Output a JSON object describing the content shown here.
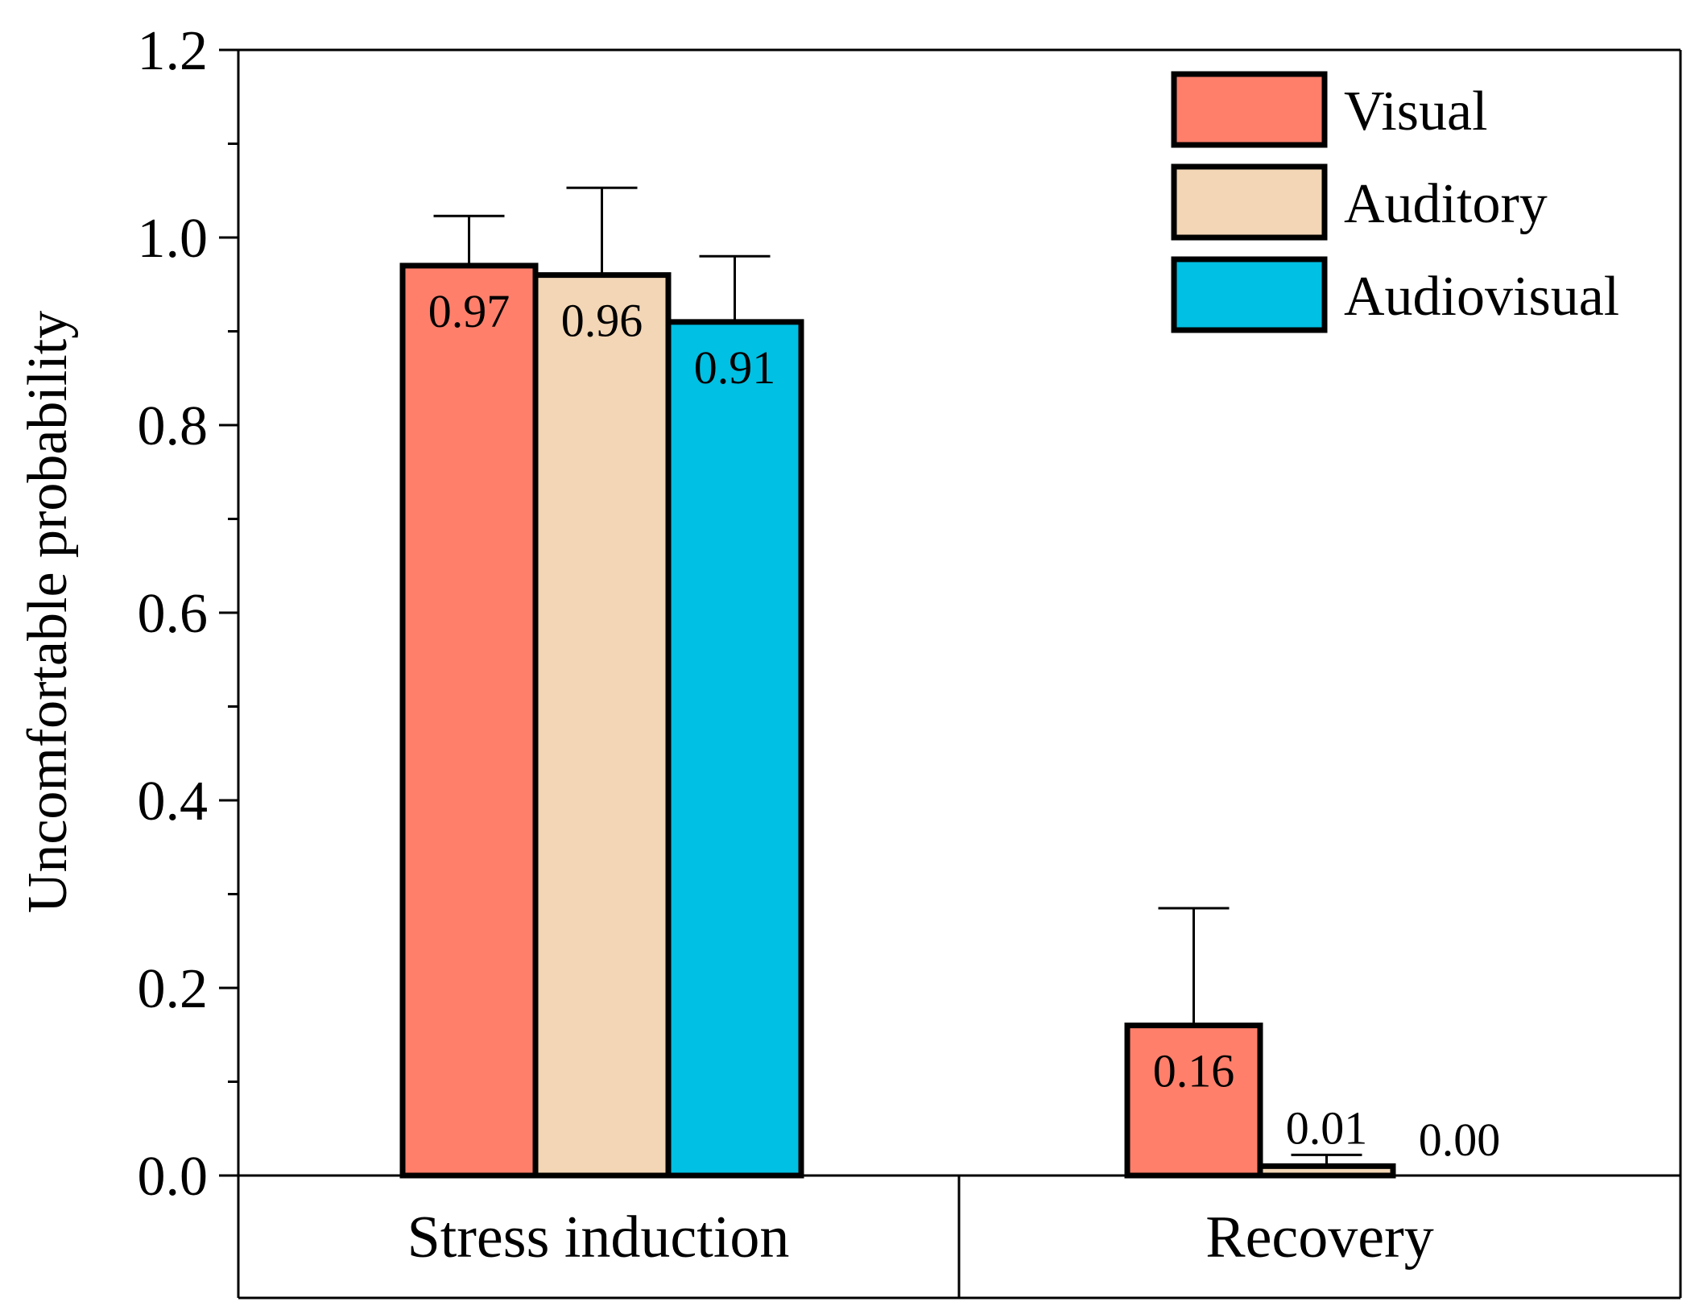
{
  "chart_data": {
    "type": "bar",
    "title": "",
    "xlabel": "",
    "ylabel": "Uncomfortable probability",
    "ylim": [
      0,
      1.2
    ],
    "yticks": [
      "0.0",
      "0.2",
      "0.4",
      "0.6",
      "0.8",
      "1.0",
      "1.2"
    ],
    "categories": [
      "Stress induction",
      "Recovery"
    ],
    "legend_position": "top-right",
    "grid": false,
    "series": [
      {
        "name": "Visual",
        "color": "#FF7F6B",
        "values": [
          0.97,
          0.16
        ],
        "errors": [
          0.053,
          0.125
        ],
        "labels": [
          "0.97",
          "0.16"
        ]
      },
      {
        "name": "Auditory",
        "color": "#F2D6B5",
        "values": [
          0.96,
          0.01
        ],
        "errors": [
          0.093,
          0.012
        ],
        "labels": [
          "0.96",
          "0.01"
        ]
      },
      {
        "name": "Audiovisual",
        "color": "#00C0E3",
        "values": [
          0.91,
          0.0
        ],
        "errors": [
          0.07,
          0.0
        ],
        "labels": [
          "0.91",
          "0.00"
        ]
      }
    ]
  }
}
